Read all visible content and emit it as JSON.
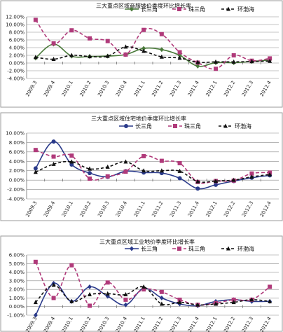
{
  "chart_data": [
    {
      "type": "line",
      "title": "三大重点区域商服地价季度环比增长率",
      "categories": [
        "2009.3",
        "2009.4",
        "2010.1",
        "2010.2",
        "2010.3",
        "2010.4",
        "2011.1",
        "2011.2",
        "2011.3",
        "2011.4",
        "2012.1",
        "2012.2",
        "2012.3",
        "2012.4"
      ],
      "y_ticks": [
        "-4.00%",
        "-2.00%",
        "0.00%",
        "2.00%",
        "4.00%",
        "6.00%",
        "8.00%",
        "10.00%",
        "12.00%"
      ],
      "ylim": [
        -4,
        12
      ],
      "legend_position": "top",
      "grid": true,
      "series": [
        {
          "name": "长三角",
          "color": "#4a7a3a",
          "marker": "diamond",
          "dash": "",
          "values": [
            1.3,
            4.9,
            1.8,
            1.7,
            1.8,
            2.2,
            3.8,
            3.5,
            2.0,
            -0.8,
            0.1,
            0.1,
            0.4,
            0.8
          ]
        },
        {
          "name": "珠三角",
          "color": "#b03a7a",
          "marker": "square",
          "dash": "5,3",
          "values": [
            11.2,
            5.1,
            8.5,
            6.4,
            5.7,
            2.2,
            8.6,
            7.5,
            2.8,
            0.1,
            -1.5,
            2.0,
            0.6,
            1.2
          ]
        },
        {
          "name": "环渤海",
          "color": "#111111",
          "marker": "triangle",
          "dash": "4,3",
          "values": [
            1.5,
            1.0,
            2.0,
            1.7,
            1.8,
            4.2,
            3.1,
            1.6,
            1.3,
            0.2,
            0.3,
            0.3,
            0.4,
            0.5
          ]
        }
      ]
    },
    {
      "type": "line",
      "title": "三大重点区域住宅地价季度环比增长率",
      "categories": [
        "2009.3",
        "2009.4",
        "2010.1",
        "2010.2",
        "2010.3",
        "2010.4",
        "2011.1",
        "2011.2",
        "2011.3",
        "2011.4",
        "2012.1",
        "2012.2",
        "2012.3",
        "2012.4"
      ],
      "y_ticks": [
        "-4.00%",
        "-2.00%",
        "0.00%",
        "2.00%",
        "4.00%",
        "6.00%",
        "8.00%",
        "10.00%"
      ],
      "ylim": [
        -4,
        10
      ],
      "legend_position": "top",
      "grid": true,
      "series": [
        {
          "name": "长三角",
          "color": "#2a3a8a",
          "marker": "circle",
          "dash": "",
          "values": [
            2.5,
            8.2,
            3.3,
            1.5,
            0.7,
            1.9,
            1.6,
            1.5,
            0.4,
            -1.8,
            -1.0,
            -0.2,
            0.5,
            1.0
          ]
        },
        {
          "name": "珠三角",
          "color": "#b03a7a",
          "marker": "square",
          "dash": "5,3",
          "values": [
            6.4,
            5.0,
            5.2,
            0.3,
            0.8,
            1.8,
            5.1,
            4.1,
            3.6,
            -0.4,
            -0.2,
            -0.1,
            1.4,
            1.6
          ]
        },
        {
          "name": "环渤海",
          "color": "#111111",
          "marker": "triangle",
          "dash": "4,3",
          "values": [
            1.7,
            3.4,
            3.9,
            2.4,
            2.8,
            3.9,
            2.0,
            2.0,
            1.9,
            -0.3,
            -0.2,
            0.0,
            0.7,
            1.2
          ]
        }
      ]
    },
    {
      "type": "line",
      "title": "三大重点区域工业地价季度环比增长率",
      "categories": [
        "2009.3",
        "2009.4",
        "2010.1",
        "2010.2",
        "2010.3",
        "2010.4",
        "2011.1",
        "2011.2",
        "2011.3",
        "2011.4",
        "2012.1",
        "2012.2",
        "2012.3",
        "2012.4"
      ],
      "y_ticks": [
        "-1.00%",
        "0.00%",
        "1.00%",
        "2.00%",
        "3.00%",
        "4.00%",
        "5.00%",
        "6.00%"
      ],
      "ylim": [
        -1,
        6
      ],
      "legend_position": "top",
      "grid": true,
      "series": [
        {
          "name": "长三角",
          "color": "#2a3a8a",
          "marker": "diamond",
          "dash": "",
          "values": [
            -1.0,
            2.7,
            0.6,
            2.3,
            1.2,
            0.2,
            2.1,
            1.0,
            0.3,
            0.1,
            0.6,
            0.8,
            0.6,
            0.6
          ]
        },
        {
          "name": "珠三角",
          "color": "#b03a7a",
          "marker": "square",
          "dash": "5,3",
          "values": [
            5.2,
            1.0,
            4.8,
            0.1,
            2.8,
            0.8,
            2.0,
            1.7,
            0.8,
            0.2,
            0.4,
            0.8,
            0.8,
            2.3
          ]
        },
        {
          "name": "环渤海",
          "color": "#111111",
          "marker": "triangle",
          "dash": "4,3",
          "values": [
            0.5,
            2.5,
            0.6,
            1.4,
            1.5,
            1.4,
            2.3,
            0.3,
            0.5,
            0.2,
            0.3,
            0.5,
            0.8,
            0.6
          ]
        }
      ]
    }
  ]
}
